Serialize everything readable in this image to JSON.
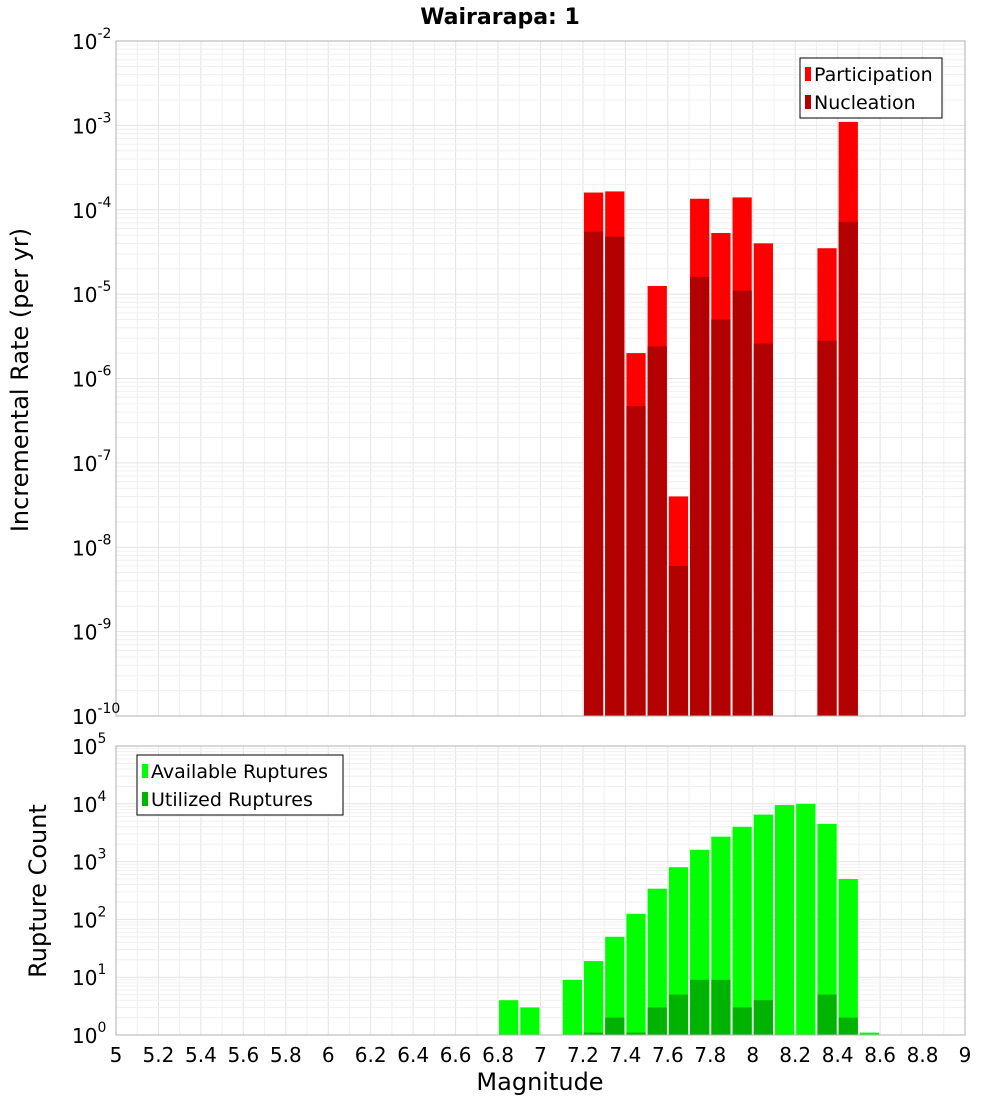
{
  "chart_data": [
    {
      "type": "bar",
      "title": "Wairarapa: 1",
      "xlabel": "",
      "ylabel": "Incremental Rate (per yr)",
      "xlim": [
        5,
        9
      ],
      "ylim": [
        1e-10,
        0.01
      ],
      "yscale": "log",
      "grid": true,
      "legend": "top-right",
      "y_tick_exponents": [
        "-10",
        "-9",
        "-8",
        "-7",
        "-6",
        "-5",
        "-4",
        "-3",
        "-2"
      ],
      "x": [
        7.25,
        7.35,
        7.45,
        7.55,
        7.65,
        7.75,
        7.85,
        7.95,
        8.05,
        8.35,
        8.45
      ],
      "series": [
        {
          "name": "Participation",
          "color": "#ff0000",
          "values": [
            0.00016,
            0.000165,
            2e-06,
            1.25e-05,
            4e-08,
            0.000135,
            5.3e-05,
            0.00014,
            4e-05,
            3.5e-05,
            0.0011
          ]
        },
        {
          "name": "Nucleation",
          "color": "#b30000",
          "values": [
            5.5e-05,
            4.8e-05,
            4.7e-07,
            2.4e-06,
            6e-09,
            1.6e-05,
            5e-06,
            1.1e-05,
            2.6e-06,
            2.8e-06,
            7.2e-05
          ]
        }
      ]
    },
    {
      "type": "bar",
      "xlabel": "Magnitude",
      "ylabel": "Rupture Count",
      "xlim": [
        5,
        9
      ],
      "ylim": [
        1,
        100000.0
      ],
      "yscale": "log",
      "grid": true,
      "legend": "top-left",
      "x_ticks": [
        "5",
        "5.2",
        "5.4",
        "5.6",
        "5.8",
        "6",
        "6.2",
        "6.4",
        "6.6",
        "6.8",
        "7",
        "7.2",
        "7.4",
        "7.6",
        "7.8",
        "8",
        "8.2",
        "8.4",
        "8.6",
        "8.8",
        "9"
      ],
      "y_tick_exponents": [
        "0",
        "1",
        "2",
        "3",
        "4",
        "5"
      ],
      "x": [
        6.85,
        6.95,
        7.15,
        7.25,
        7.35,
        7.45,
        7.55,
        7.65,
        7.75,
        7.85,
        7.95,
        8.05,
        8.15,
        8.25,
        8.35,
        8.45,
        8.55
      ],
      "series": [
        {
          "name": "Available Ruptures",
          "color": "#00ff00",
          "values": [
            4,
            3,
            9,
            19,
            50,
            125,
            340,
            800,
            1600,
            2700,
            4000,
            6500,
            9500,
            10000,
            4500,
            500,
            1.1
          ]
        },
        {
          "name": "Utilized Ruptures",
          "color": "#00b300",
          "values": [
            null,
            null,
            null,
            1.1,
            2,
            1.1,
            3,
            5,
            9,
            9,
            3,
            4,
            1,
            null,
            5,
            2,
            null
          ]
        }
      ]
    }
  ]
}
